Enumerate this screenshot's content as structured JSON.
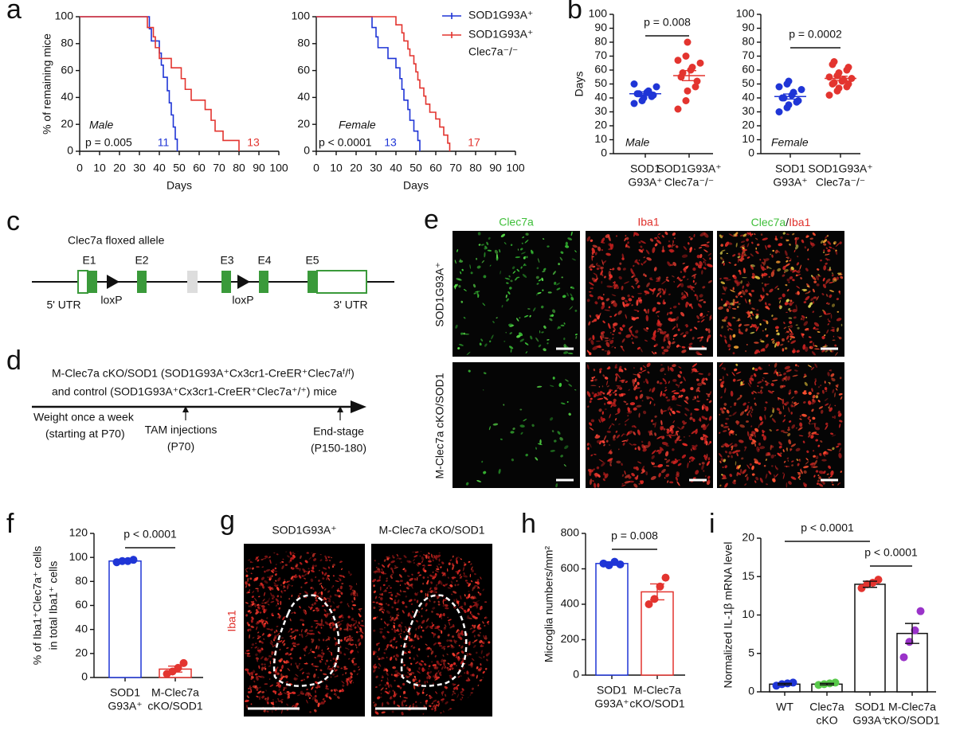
{
  "panel_labels": [
    "a",
    "b",
    "c",
    "d",
    "e",
    "f",
    "g",
    "h",
    "i"
  ],
  "chart_data": [
    {
      "type": "step",
      "ylabel": "% of remaining mice",
      "xlabel": "Days",
      "xlim": [
        0,
        100
      ],
      "xticks": [
        0,
        10,
        20,
        30,
        40,
        50,
        60,
        70,
        80,
        90,
        100
      ],
      "ylim": [
        0,
        100
      ],
      "yticks": [
        0,
        20,
        40,
        60,
        80,
        100
      ],
      "sex": "Male",
      "p_value": "p = 0.005",
      "series": [
        {
          "color": "#1f35d6",
          "n": 11,
          "x": [
            0,
            35,
            36,
            40,
            41,
            42,
            44,
            45,
            46,
            47,
            48,
            49
          ],
          "values": [
            100,
            91,
            82,
            73,
            64,
            55,
            45,
            36,
            27,
            18,
            9,
            0
          ]
        },
        {
          "color": "#e3342f",
          "n": 13,
          "x": [
            0,
            34,
            37,
            38,
            40,
            46,
            51,
            53,
            56,
            63,
            66,
            68,
            72,
            80
          ],
          "values": [
            100,
            92,
            85,
            77,
            69,
            62,
            54,
            46,
            38,
            31,
            23,
            15,
            8,
            0
          ]
        }
      ]
    },
    {
      "type": "step",
      "xlabel": "Days",
      "xlim": [
        0,
        100
      ],
      "xticks": [
        0,
        10,
        20,
        30,
        40,
        50,
        60,
        70,
        80,
        90,
        100
      ],
      "ylim": [
        0,
        100
      ],
      "yticks": [
        0,
        20,
        40,
        60,
        80,
        100
      ],
      "sex": "Female",
      "p_value": "p < 0.0001",
      "series": [
        {
          "name": [
            "SOD1G93A⁺"
          ],
          "color": "#1f35d6",
          "n": 13,
          "x": [
            0,
            28,
            30,
            31,
            36,
            40,
            42,
            43,
            44,
            46,
            47,
            49,
            51,
            52
          ],
          "values": [
            100,
            92,
            85,
            77,
            69,
            62,
            54,
            46,
            38,
            31,
            23,
            15,
            8,
            0
          ]
        },
        {
          "name": [
            "SOD1G93A⁺",
            "Clec7a⁻/⁻"
          ],
          "color": "#e3342f",
          "n": 17,
          "x": [
            0,
            40,
            43,
            44,
            46,
            47,
            49,
            50,
            51,
            52,
            54,
            55,
            57,
            60,
            62,
            64,
            66,
            67
          ],
          "values": [
            100,
            94,
            88,
            82,
            76,
            71,
            65,
            59,
            53,
            47,
            41,
            35,
            29,
            24,
            18,
            12,
            6,
            0
          ]
        }
      ]
    },
    {
      "type": "strip",
      "ylabel": "Days",
      "ylim": [
        0,
        100
      ],
      "yticks": [
        0,
        10,
        20,
        30,
        40,
        50,
        60,
        70,
        80,
        90,
        100
      ],
      "categories": [
        [
          "SOD1",
          "G93A⁺"
        ],
        [
          "SOD1G93A⁺",
          "Clec7a⁻/⁻"
        ]
      ],
      "sex": "Male",
      "p_value": "p = 0.008",
      "series": [
        {
          "color": "#1f35d6",
          "values": [
            36,
            38,
            40,
            41,
            42,
            43,
            43,
            44,
            45,
            48,
            50
          ],
          "mean": 43,
          "sem": 1.3
        },
        {
          "color": "#e3342f",
          "values": [
            32,
            38,
            45,
            48,
            52,
            55,
            58,
            60,
            62,
            65,
            67,
            70,
            80
          ],
          "mean": 56,
          "sem": 3.6
        }
      ]
    },
    {
      "type": "strip",
      "ylim": [
        0,
        100
      ],
      "yticks": [
        0,
        10,
        20,
        30,
        40,
        50,
        60,
        70,
        80,
        90,
        100
      ],
      "categories": [
        [
          "SOD1",
          "G93A⁺"
        ],
        [
          "SOD1G93A⁺",
          "Clec7a⁻/⁻"
        ]
      ],
      "sex": "Female",
      "p_value": "p = 0.0002",
      "series": [
        {
          "color": "#1f35d6",
          "values": [
            30,
            33,
            35,
            37,
            38,
            40,
            40,
            42,
            44,
            46,
            48,
            50,
            52
          ],
          "mean": 41,
          "sem": 1.8
        },
        {
          "color": "#e3342f",
          "values": [
            42,
            45,
            47,
            48,
            50,
            50,
            51,
            52,
            53,
            54,
            55,
            56,
            58,
            60,
            62,
            64,
            66
          ],
          "mean": 54,
          "sem": 1.6
        }
      ]
    },
    {
      "type": "bar",
      "ylabel": [
        "% of Iba1⁺Clec7a⁺ cells",
        "in total Iba1⁺ cells"
      ],
      "ylim": [
        0,
        120
      ],
      "yticks": [
        0,
        20,
        40,
        60,
        80,
        100,
        120
      ],
      "categories": [
        [
          "SOD1",
          "G93A⁺"
        ],
        [
          "M-Clec7a",
          "cKO/SOD1"
        ]
      ],
      "values": [
        97,
        7
      ],
      "errors": [
        0.5,
        2.5
      ],
      "points": [
        [
          96,
          97,
          97,
          98
        ],
        [
          3,
          5,
          8,
          12
        ]
      ],
      "colors": [
        "#1f35d6",
        "#e3342f"
      ],
      "edge_colors": [
        "#1f35d6",
        "#e3342f"
      ],
      "p_values": [
        "p < 0.0001"
      ]
    },
    {
      "type": "bar",
      "ylabel": [
        "Microglia numbers/mm²"
      ],
      "ylim": [
        0,
        800
      ],
      "yticks": [
        0,
        200,
        400,
        600,
        800
      ],
      "categories": [
        [
          "SOD1",
          "G93A⁺"
        ],
        [
          "M-Clec7a",
          "cKO/SOD1"
        ]
      ],
      "values": [
        630,
        470
      ],
      "errors": [
        10,
        45
      ],
      "points": [
        [
          630,
          620,
          640,
          625
        ],
        [
          400,
          430,
          500,
          550
        ]
      ],
      "colors": [
        "#1f35d6",
        "#e3342f"
      ],
      "edge_colors": [
        "#1f35d6",
        "#e3342f"
      ],
      "p_values": [
        "p = 0.008"
      ]
    },
    {
      "type": "bar",
      "ylabel": [
        "Normalized IL-1β mRNA level"
      ],
      "ylim": [
        0,
        20
      ],
      "yticks": [
        0,
        5,
        10,
        15,
        20
      ],
      "categories": [
        [
          "WT"
        ],
        [
          "Clec7a",
          "cKO"
        ],
        [
          "SOD1",
          "G93A⁺"
        ],
        [
          "M-Clec7a",
          "cKO/SOD1"
        ]
      ],
      "values": [
        1.0,
        1.0,
        14,
        7.6
      ],
      "errors": [
        0.1,
        0.1,
        0.4,
        1.3
      ],
      "points": [
        [
          0.8,
          1.0,
          1.1,
          1.2
        ],
        [
          0.9,
          1.0,
          1.1,
          1.2
        ],
        [
          13.5,
          14,
          14.2,
          14.6
        ],
        [
          4.5,
          6.5,
          8,
          10.5
        ]
      ],
      "colors": [
        "#1f35d6",
        "#58c94a",
        "#e3342f",
        "#9a33c9"
      ],
      "edge_colors": [
        "#111111",
        "#111111",
        "#111111",
        "#111111"
      ],
      "p_values": [
        "p < 0.0001",
        "p < 0.0001"
      ]
    }
  ],
  "allele_diagram": {
    "title": "Clec7a floxed allele",
    "exons": [
      "E1",
      "E2",
      "E3",
      "E4",
      "E5"
    ],
    "loxp": [
      "loxP",
      "loxP"
    ],
    "utr": [
      "5' UTR",
      "3' UTR"
    ]
  },
  "timeline": {
    "lines": [
      "M-Clec7a cKO/SOD1 (SOD1G93A⁺Cx3cr1-CreER⁺Clec7aᶠ/ᶠ)",
      "and control (SOD1G93A⁺Cx3cr1-CreER⁺Clec7a⁺/⁺) mice"
    ],
    "events": [
      [
        "Weight once a week",
        "(starting at P70)"
      ],
      [
        "TAM injections",
        "(P70)"
      ],
      [
        "End-stage",
        "(P150-180)"
      ]
    ]
  },
  "micrographs_e": {
    "columns": [
      "Clec7a",
      "Iba1"
    ],
    "merge_label": [
      "Clec7a",
      "/",
      "Iba1"
    ],
    "rows": [
      "SOD1G93A⁺",
      "M-Clec7a cKO/SOD1"
    ]
  },
  "micrographs_g": {
    "columns": [
      "SOD1G93A⁺",
      "M-Clec7a cKO/SOD1"
    ],
    "stain": "Iba1"
  }
}
